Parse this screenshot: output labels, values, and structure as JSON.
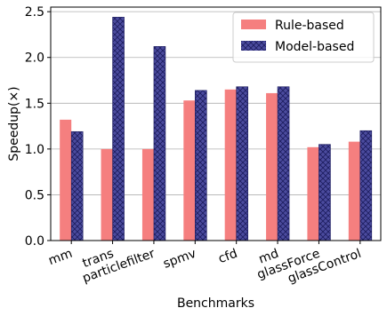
{
  "chart_data": {
    "type": "bar",
    "title": "",
    "xlabel": "Benchmarks",
    "ylabel": "Speedup(×)",
    "ylim": [
      0,
      2.55
    ],
    "yticks": [
      "0.0",
      "0.5",
      "1.0",
      "1.5",
      "2.0",
      "2.5"
    ],
    "ytick_values": [
      0,
      0.5,
      1.0,
      1.5,
      2.0,
      2.5
    ],
    "grid": "horizontal",
    "legend_position": "top-right",
    "categories": [
      "mm",
      "trans",
      "particlefilter",
      "spmv",
      "cfd",
      "md",
      "glassForce",
      "glassControl"
    ],
    "series": [
      {
        "name": "Rule-based",
        "color": "#f57f7f",
        "pattern": "solid",
        "values": [
          1.32,
          1.0,
          1.0,
          1.53,
          1.65,
          1.61,
          1.02,
          1.08
        ]
      },
      {
        "name": "Model-based",
        "color": "#4b4b9e",
        "pattern": "crosshatch",
        "values": [
          1.19,
          2.44,
          2.12,
          1.64,
          1.68,
          1.68,
          1.05,
          1.2
        ]
      }
    ]
  }
}
